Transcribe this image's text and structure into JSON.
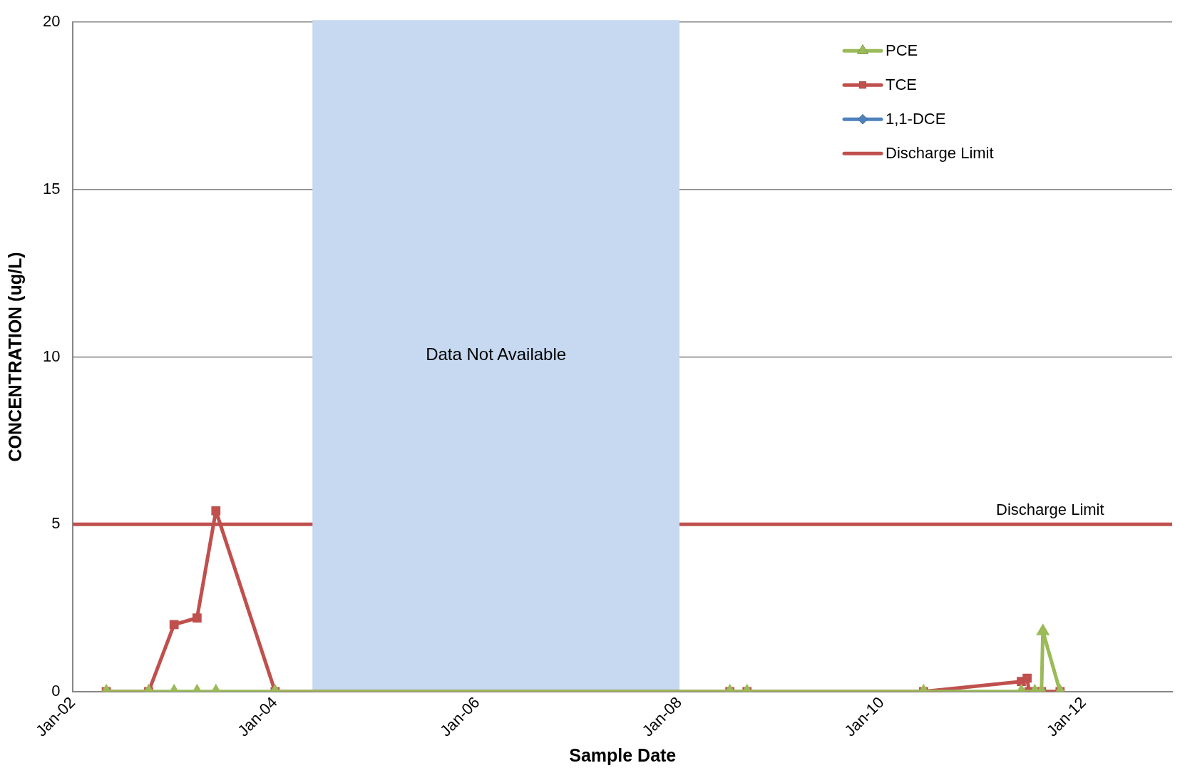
{
  "chart_data": {
    "type": "line",
    "xlabel": "Sample Date",
    "ylabel": "CONCENTRATION (ug/L)",
    "xlim": [
      "2002-01",
      "2012-11-15"
    ],
    "xticks": [
      {
        "value": "2002-01",
        "label": "Jan-02"
      },
      {
        "value": "2004-01",
        "label": "Jan-04"
      },
      {
        "value": "2006-01",
        "label": "Jan-06"
      },
      {
        "value": "2008-01",
        "label": "Jan-08"
      },
      {
        "value": "2010-01",
        "label": "Jan-10"
      },
      {
        "value": "2012-01",
        "label": "Jan-12"
      }
    ],
    "ylim": [
      0,
      20
    ],
    "yticks": [
      0,
      5,
      10,
      15,
      20
    ],
    "grid": "y",
    "legend": "top right",
    "series": [
      {
        "name": "PCE",
        "color": "#9bbb59",
        "marker": "triangle",
        "x": [
          "2002-05",
          "2002-10",
          "2003-01",
          "2003-03-25",
          "2003-06",
          "2004-01",
          "2008-07",
          "2008-09",
          "2010-06",
          "2011-05-20",
          "2011-07-08",
          "2011-08-01",
          "2011-08-06",
          "2011-10-07"
        ],
        "values": [
          0,
          0,
          0,
          0,
          0,
          0,
          0,
          0,
          0,
          0,
          0,
          0,
          1.8,
          0
        ]
      },
      {
        "name": "TCE",
        "color": "#c0504d",
        "marker": "square",
        "x": [
          "2002-05",
          "2002-10",
          "2003-01",
          "2003-03-25",
          "2003-06",
          "2004-01",
          "2008-07",
          "2008-09",
          "2010-06",
          "2011-05-20",
          "2011-06-10",
          "2011-06-17",
          "2011-08-01",
          "2011-10-07"
        ],
        "values": [
          0,
          0,
          2.0,
          2.2,
          5.4,
          0,
          0,
          0,
          0,
          0.3,
          0.4,
          0,
          0,
          0
        ]
      },
      {
        "name": "1,1-DCE",
        "color": "#4f81bd",
        "marker": "diamond"
      }
    ],
    "ref_lines": [
      {
        "axis": "y",
        "value": 5,
        "label": "Discharge Limit",
        "color": "#c0504d"
      }
    ],
    "bands": [
      {
        "axis": "x",
        "from": "2004-05-15",
        "to": "2008-01-01",
        "label": "Data Not Available",
        "color": "#c6d9f0"
      }
    ],
    "annotations": [
      {
        "text": "Discharge Limit",
        "x": "2011-09",
        "y": 5
      }
    ]
  }
}
